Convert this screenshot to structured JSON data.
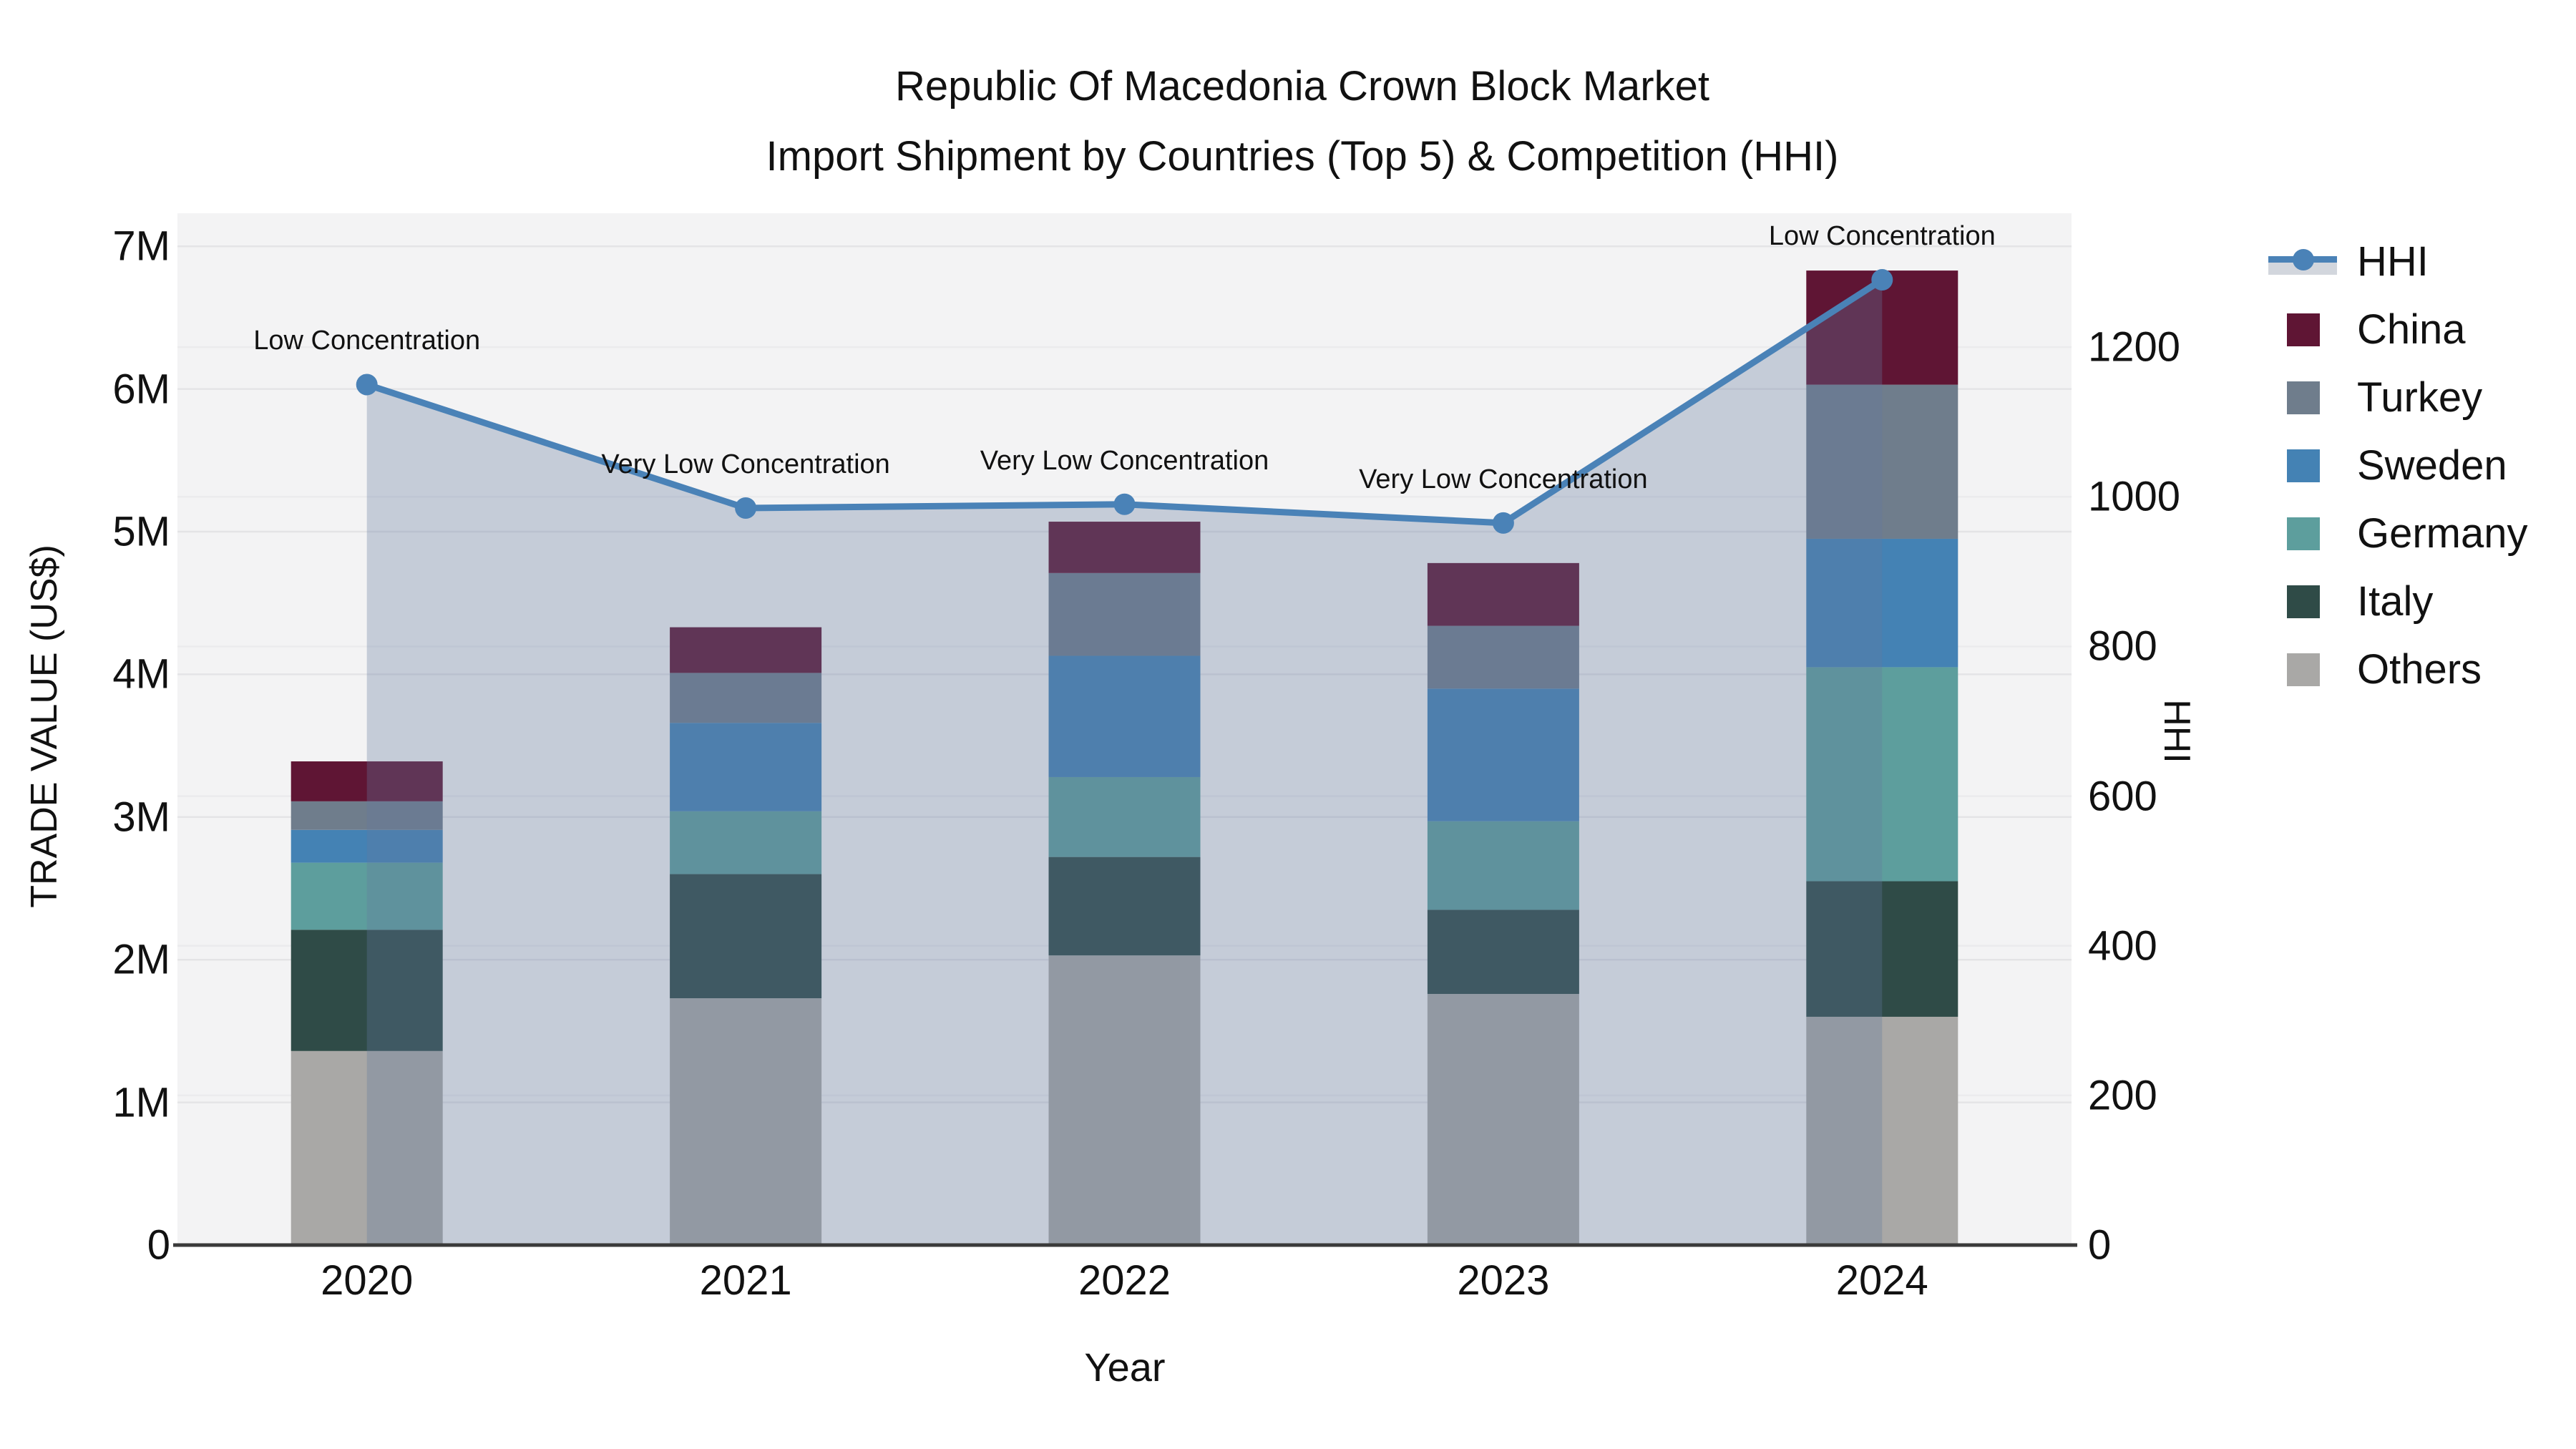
{
  "title": {
    "line1": "Republic Of Macedonia Crown Block Market",
    "line2": "Import Shipment by Countries (Top 5) & Competition (HHI)"
  },
  "axes": {
    "left": {
      "title": "TRADE VALUE (US$)"
    },
    "right": {
      "title": "HHI"
    },
    "x": {
      "title": "Year"
    }
  },
  "legend": [
    {
      "label": "HHI",
      "type": "line-marker",
      "color": "#4a82b7"
    },
    {
      "label": "China",
      "type": "square",
      "color": "#5f1534"
    },
    {
      "label": "Turkey",
      "type": "square",
      "color": "#6f7d8c"
    },
    {
      "label": "Sweden",
      "type": "square",
      "color": "#4482b4"
    },
    {
      "label": "Germany",
      "type": "square",
      "color": "#5d9e9d"
    },
    {
      "label": "Italy",
      "type": "square",
      "color": "#2f4b47"
    },
    {
      "label": "Others",
      "type": "square",
      "color": "#a9a8a6"
    }
  ],
  "colors": {
    "plot_background": "#f3f3f4",
    "gridline_left_axis": "#e4e4e6",
    "gridline_right_axis": "#ebebed",
    "baseline": "#3a3a3a",
    "hhi_line": "#4a82b7",
    "hhi_area_fill": "rgba(100,120,160,0.32)",
    "text": "#111111"
  },
  "chart_data": [
    {
      "type": "bar",
      "stacked": true,
      "title": "Republic Of Macedonia Crown Block Market Import Shipment by Countries (Top 5)",
      "xlabel": "Year",
      "ylabel": "TRADE VALUE (US$)",
      "categories": [
        "2020",
        "2021",
        "2022",
        "2023",
        "2024"
      ],
      "series": [
        {
          "name": "Others",
          "color": "#a9a8a6",
          "values": [
            1360000,
            1730000,
            2030000,
            1760000,
            1600000
          ]
        },
        {
          "name": "Italy",
          "color": "#2f4b47",
          "values": [
            850000,
            870000,
            690000,
            590000,
            950000
          ]
        },
        {
          "name": "Germany",
          "color": "#5d9e9d",
          "values": [
            470000,
            440000,
            560000,
            620000,
            1500000
          ]
        },
        {
          "name": "Sweden",
          "color": "#4482b4",
          "values": [
            230000,
            620000,
            850000,
            930000,
            900000
          ]
        },
        {
          "name": "Turkey",
          "color": "#6f7d8c",
          "values": [
            200000,
            350000,
            580000,
            440000,
            1080000
          ]
        },
        {
          "name": "China",
          "color": "#5f1534",
          "values": [
            280000,
            320000,
            360000,
            440000,
            800000
          ]
        }
      ],
      "totals": [
        3390000,
        4330000,
        5070000,
        4780000,
        6830000
      ],
      "ylim": [
        0,
        7000000
      ],
      "yticks": [
        "0",
        "1M",
        "2M",
        "3M",
        "4M",
        "5M",
        "6M",
        "7M"
      ],
      "grid": true,
      "legend_position": "right"
    },
    {
      "type": "line",
      "name": "HHI",
      "axis": "right",
      "x": [
        "2020",
        "2021",
        "2022",
        "2023",
        "2024"
      ],
      "values": [
        1150,
        985,
        990,
        965,
        1290
      ],
      "area": true,
      "marker": "circle",
      "color": "#4a82b7",
      "fill_color": "rgba(100,120,160,0.32)",
      "ylim": [
        0,
        1380
      ],
      "yticks": [
        0,
        200,
        400,
        600,
        800,
        1000,
        1200
      ],
      "annotations": [
        "Low Concentration",
        "Very Low Concentration",
        "Very Low Concentration",
        "Very Low Concentration",
        "Low Concentration"
      ]
    }
  ]
}
